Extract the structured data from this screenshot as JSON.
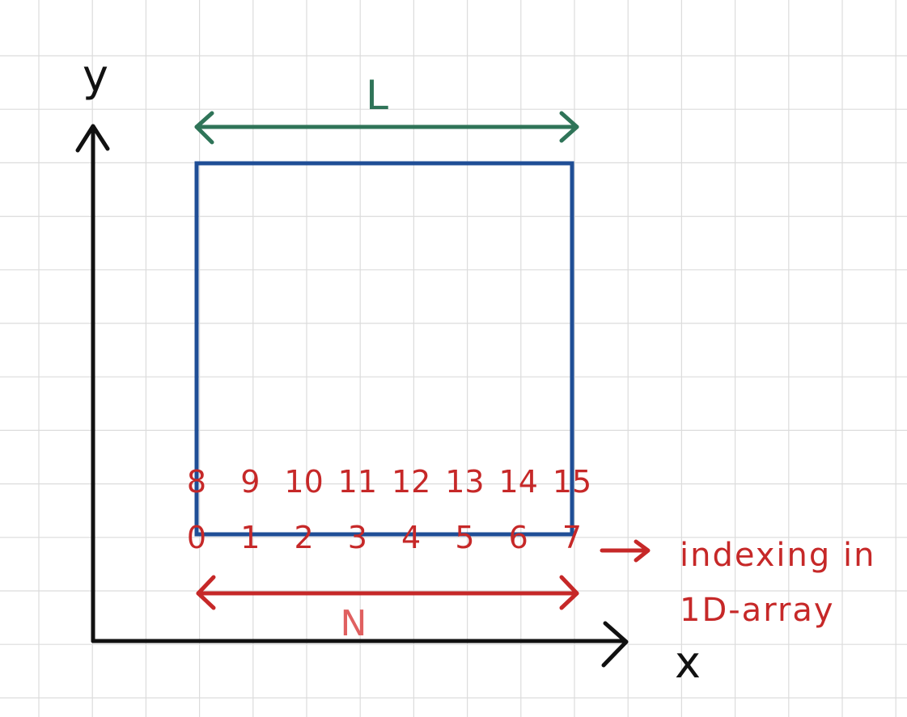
{
  "axes": {
    "x_label": "x",
    "y_label": "y"
  },
  "dimension_labels": {
    "length": "L",
    "count": "N"
  },
  "row_indices": {
    "bottom": [
      "0",
      "1",
      "2",
      "3",
      "4",
      "5",
      "6",
      "7"
    ],
    "top": [
      "8",
      "9",
      "10",
      "11",
      "12",
      "13",
      "14",
      "15"
    ]
  },
  "annotation": {
    "line1": "indexing in",
    "line2": "1D-array"
  },
  "colors": {
    "grid": "#dcdcdc",
    "axes": "#111111",
    "box": "#1f4e96",
    "length_arrow": "#2f7458",
    "count_arrow": "#c62828",
    "count_label": "#e06060",
    "indices": "#c62828"
  }
}
